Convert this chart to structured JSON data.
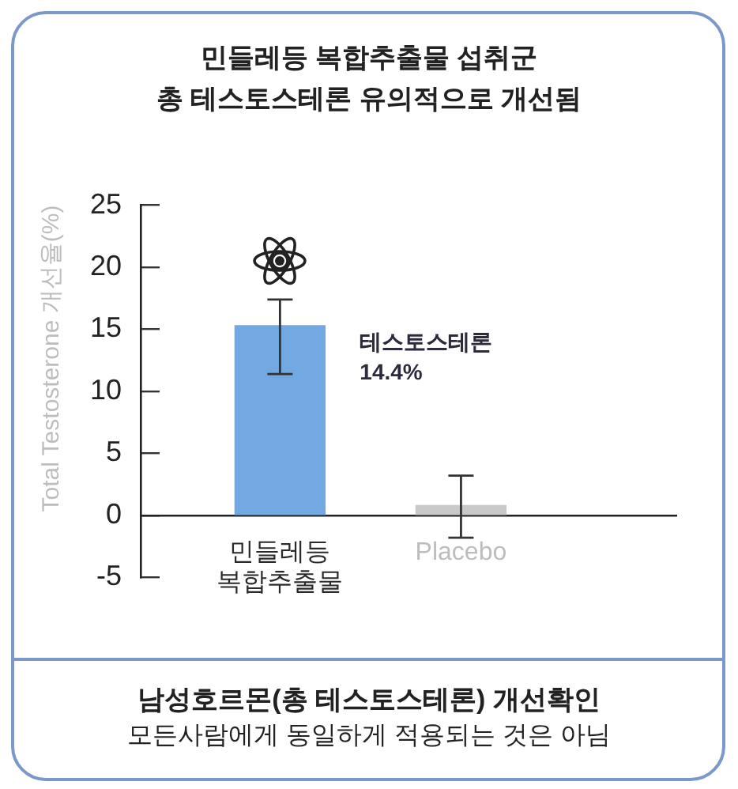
{
  "chart_data": {
    "type": "bar",
    "title": "민들레등 복합추출물 섭취군\n총 테스토스테론 유의적으로 개선됨",
    "ylabel": "Total Testosterone 개선율(%)",
    "categories": [
      "민들레등\n복합추출물",
      "Placebo"
    ],
    "values": [
      15.3,
      0.8
    ],
    "colors": [
      "#72a9e3",
      "#c9c9c9"
    ],
    "errors": [
      [
        11.4,
        17.4
      ],
      [
        -1.8,
        3.2
      ]
    ],
    "ylim": [
      -5,
      25
    ],
    "yticks": [
      -5,
      0,
      5,
      10,
      15,
      20,
      25
    ],
    "annotations": [
      "테스토스테론\n14.4%",
      "남성호르몬(총 테스토스테론) 개선확인",
      "모든사람에게 동일하게 적용되는 것은 아님"
    ]
  }
}
